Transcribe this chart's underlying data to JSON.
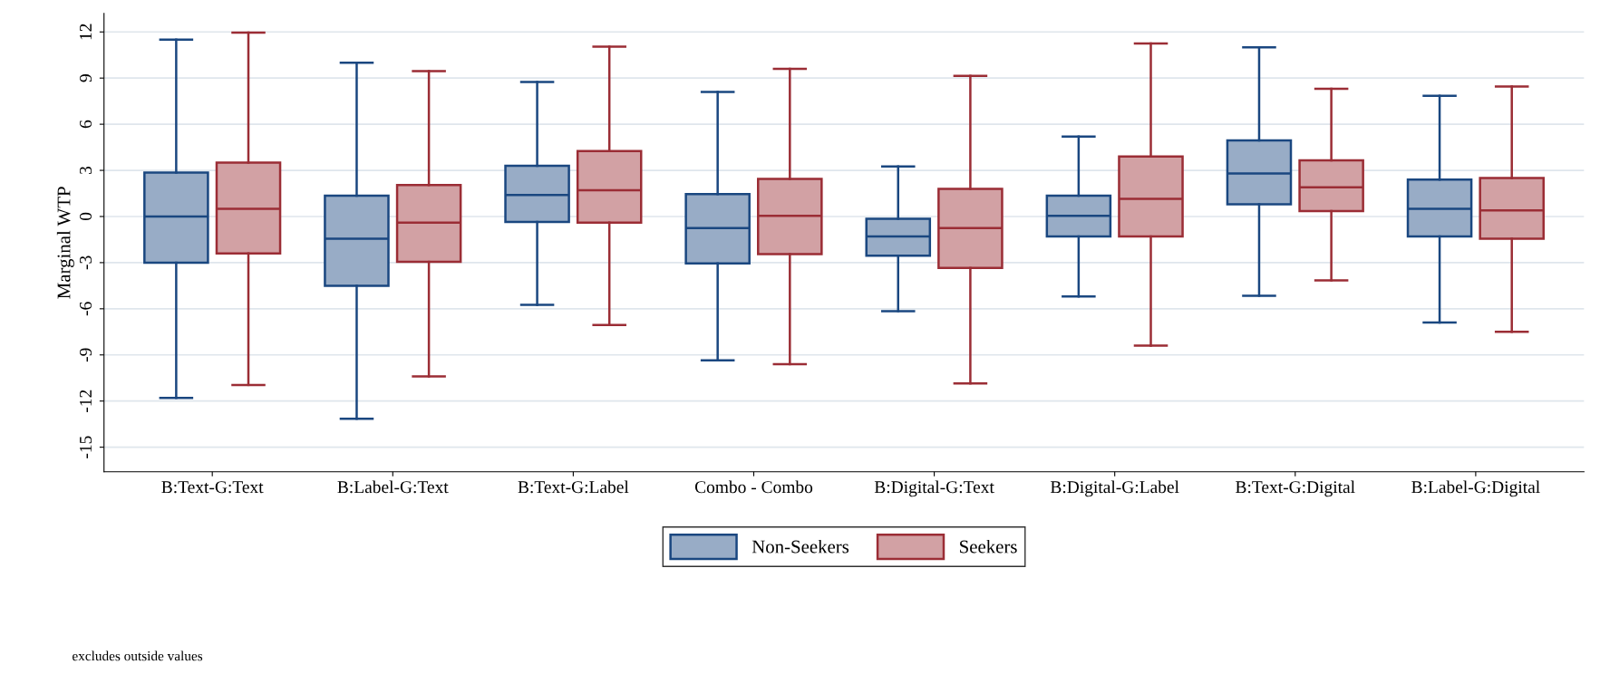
{
  "chart_data": {
    "type": "box",
    "ylabel": "Marginal WTP",
    "categories": [
      "B:Text-G:Text",
      "B:Label-G:Text",
      "B:Text-G:Label",
      "Combo - Combo",
      "B:Digital-G:Text",
      "B:Digital-G:Label",
      "B:Text-G:Digital",
      "B:Label-G:Digital"
    ],
    "series": [
      {
        "name": "Non-Seekers",
        "color": "#1a4780",
        "boxes": [
          {
            "low": -11.8,
            "q1": -3.0,
            "median": 0.0,
            "q3": 2.85,
            "high": 11.5
          },
          {
            "low": -13.15,
            "q1": -4.5,
            "median": -1.45,
            "q3": 1.35,
            "high": 10.0
          },
          {
            "low": -5.75,
            "q1": -0.35,
            "median": 1.4,
            "q3": 3.3,
            "high": 8.75
          },
          {
            "low": -9.35,
            "q1": -3.05,
            "median": -0.75,
            "q3": 1.45,
            "high": 8.1
          },
          {
            "low": -6.15,
            "q1": -2.55,
            "median": -1.3,
            "q3": -0.15,
            "high": 3.25
          },
          {
            "low": -5.2,
            "q1": -1.3,
            "median": 0.05,
            "q3": 1.35,
            "high": 5.2
          },
          {
            "low": -5.15,
            "q1": 0.8,
            "median": 2.8,
            "q3": 4.95,
            "high": 11.0
          },
          {
            "low": -6.9,
            "q1": -1.3,
            "median": 0.5,
            "q3": 2.4,
            "high": 7.85
          }
        ]
      },
      {
        "name": "Seekers",
        "color": "#9b2d35",
        "boxes": [
          {
            "low": -10.95,
            "q1": -2.4,
            "median": 0.5,
            "q3": 3.5,
            "high": 11.95
          },
          {
            "low": -10.4,
            "q1": -2.95,
            "median": -0.4,
            "q3": 2.05,
            "high": 9.45
          },
          {
            "low": -7.05,
            "q1": -0.4,
            "median": 1.7,
            "q3": 4.25,
            "high": 11.05
          },
          {
            "low": -9.6,
            "q1": -2.45,
            "median": 0.05,
            "q3": 2.45,
            "high": 9.6
          },
          {
            "low": -10.85,
            "q1": -3.35,
            "median": -0.75,
            "q3": 1.8,
            "high": 9.15
          },
          {
            "low": -8.4,
            "q1": -1.3,
            "median": 1.15,
            "q3": 3.9,
            "high": 11.25
          },
          {
            "low": -4.15,
            "q1": 0.35,
            "median": 1.9,
            "q3": 3.65,
            "high": 8.3
          },
          {
            "low": -7.5,
            "q1": -1.45,
            "median": 0.4,
            "q3": 2.5,
            "high": 8.45
          }
        ]
      }
    ],
    "ylim": [
      -16.6,
      13.2
    ],
    "yticks": [
      -15,
      -12,
      -9,
      -6,
      -3,
      0,
      3,
      6,
      9,
      12
    ],
    "grid": "y",
    "legend": "bottom",
    "annotations": [
      "excludes outside values"
    ]
  }
}
